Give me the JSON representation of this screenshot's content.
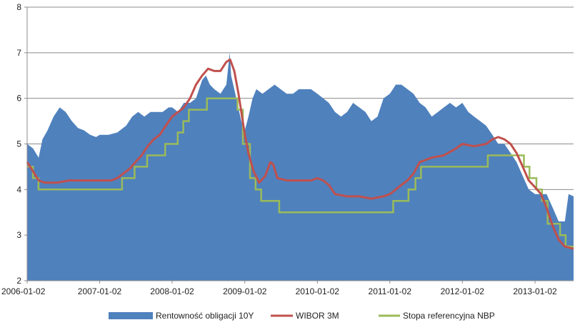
{
  "chart_data": {
    "type": "area",
    "title": "",
    "xlabel": "",
    "ylabel": "",
    "ylim": [
      2,
      8
    ],
    "yticks": [
      "2",
      "3",
      "4",
      "5",
      "6",
      "7",
      "8"
    ],
    "xlim": [
      "2006-01-02",
      "2013-07-15"
    ],
    "xticks": [
      "2006-01-02",
      "2007-01-02",
      "2008-01-02",
      "2009-01-02",
      "2010-01-02",
      "2011-01-02",
      "2012-01-02",
      "2013-01-02"
    ],
    "grid": "horizontal",
    "legend_position": "bottom",
    "colors": {
      "bond": "#4f81bd",
      "wibor": "#c0504d",
      "ref_rate": "#9bbb59",
      "grid": "#8c8c8c",
      "axis": "#8c8c8c"
    },
    "series": [
      {
        "name": "Rentowność obligacji 10Y",
        "kind": "area",
        "points": [
          [
            "2006-01-02",
            5.0
          ],
          [
            "2006-02-01",
            4.9
          ],
          [
            "2006-03-01",
            4.7
          ],
          [
            "2006-03-20",
            5.1
          ],
          [
            "2006-04-15",
            5.3
          ],
          [
            "2006-05-15",
            5.6
          ],
          [
            "2006-06-15",
            5.8
          ],
          [
            "2006-07-15",
            5.7
          ],
          [
            "2006-08-15",
            5.5
          ],
          [
            "2006-09-15",
            5.35
          ],
          [
            "2006-10-15",
            5.3
          ],
          [
            "2006-11-15",
            5.2
          ],
          [
            "2006-12-15",
            5.15
          ],
          [
            "2007-01-02",
            5.2
          ],
          [
            "2007-02-15",
            5.2
          ],
          [
            "2007-04-01",
            5.25
          ],
          [
            "2007-05-15",
            5.4
          ],
          [
            "2007-06-15",
            5.6
          ],
          [
            "2007-07-15",
            5.7
          ],
          [
            "2007-08-15",
            5.6
          ],
          [
            "2007-09-15",
            5.7
          ],
          [
            "2007-10-15",
            5.7
          ],
          [
            "2007-11-15",
            5.7
          ],
          [
            "2007-12-15",
            5.8
          ],
          [
            "2008-01-02",
            5.8
          ],
          [
            "2008-02-01",
            5.7
          ],
          [
            "2008-03-01",
            5.9
          ],
          [
            "2008-04-01",
            5.9
          ],
          [
            "2008-05-01",
            6.0
          ],
          [
            "2008-06-01",
            6.4
          ],
          [
            "2008-06-20",
            6.5
          ],
          [
            "2008-07-10",
            6.3
          ],
          [
            "2008-08-01",
            6.2
          ],
          [
            "2008-09-01",
            6.1
          ],
          [
            "2008-10-01",
            6.3
          ],
          [
            "2008-10-18",
            7.0
          ],
          [
            "2008-10-25",
            6.5
          ],
          [
            "2008-11-15",
            6.1
          ],
          [
            "2008-12-15",
            5.5
          ],
          [
            "2009-01-02",
            5.3
          ],
          [
            "2009-01-20",
            5.6
          ],
          [
            "2009-02-10",
            6.0
          ],
          [
            "2009-03-01",
            6.2
          ],
          [
            "2009-04-01",
            6.1
          ],
          [
            "2009-05-01",
            6.2
          ],
          [
            "2009-06-01",
            6.3
          ],
          [
            "2009-07-01",
            6.2
          ],
          [
            "2009-08-01",
            6.1
          ],
          [
            "2009-09-01",
            6.1
          ],
          [
            "2009-10-01",
            6.2
          ],
          [
            "2009-11-01",
            6.2
          ],
          [
            "2009-12-01",
            6.2
          ],
          [
            "2010-01-02",
            6.1
          ],
          [
            "2010-02-01",
            6.0
          ],
          [
            "2010-03-01",
            5.9
          ],
          [
            "2010-04-01",
            5.7
          ],
          [
            "2010-05-01",
            5.6
          ],
          [
            "2010-06-01",
            5.7
          ],
          [
            "2010-07-01",
            5.9
          ],
          [
            "2010-08-01",
            5.8
          ],
          [
            "2010-09-01",
            5.7
          ],
          [
            "2010-10-01",
            5.5
          ],
          [
            "2010-11-01",
            5.6
          ],
          [
            "2010-12-01",
            6.0
          ],
          [
            "2011-01-02",
            6.1
          ],
          [
            "2011-02-01",
            6.3
          ],
          [
            "2011-03-01",
            6.3
          ],
          [
            "2011-04-01",
            6.2
          ],
          [
            "2011-05-01",
            6.1
          ],
          [
            "2011-06-01",
            5.9
          ],
          [
            "2011-07-01",
            5.8
          ],
          [
            "2011-08-01",
            5.6
          ],
          [
            "2011-09-01",
            5.7
          ],
          [
            "2011-10-01",
            5.8
          ],
          [
            "2011-11-01",
            5.9
          ],
          [
            "2011-12-01",
            5.8
          ],
          [
            "2012-01-02",
            5.9
          ],
          [
            "2012-02-01",
            5.7
          ],
          [
            "2012-03-01",
            5.6
          ],
          [
            "2012-04-01",
            5.5
          ],
          [
            "2012-05-01",
            5.4
          ],
          [
            "2012-06-01",
            5.2
          ],
          [
            "2012-07-01",
            5.0
          ],
          [
            "2012-08-01",
            5.0
          ],
          [
            "2012-09-01",
            4.8
          ],
          [
            "2012-10-01",
            4.6
          ],
          [
            "2012-11-01",
            4.3
          ],
          [
            "2012-12-01",
            4.0
          ],
          [
            "2013-01-02",
            3.9
          ],
          [
            "2013-02-01",
            3.9
          ],
          [
            "2013-03-01",
            3.9
          ],
          [
            "2013-04-01",
            3.6
          ],
          [
            "2013-05-01",
            3.3
          ],
          [
            "2013-06-01",
            3.3
          ],
          [
            "2013-06-20",
            3.9
          ],
          [
            "2013-07-15",
            3.85
          ]
        ]
      },
      {
        "name": "WIBOR 3M",
        "kind": "line",
        "points": [
          [
            "2006-01-02",
            4.6
          ],
          [
            "2006-02-01",
            4.4
          ],
          [
            "2006-03-01",
            4.2
          ],
          [
            "2006-04-01",
            4.15
          ],
          [
            "2006-06-01",
            4.15
          ],
          [
            "2006-08-01",
            4.2
          ],
          [
            "2006-10-01",
            4.2
          ],
          [
            "2006-12-01",
            4.2
          ],
          [
            "2007-01-02",
            4.2
          ],
          [
            "2007-03-01",
            4.2
          ],
          [
            "2007-04-01",
            4.25
          ],
          [
            "2007-05-01",
            4.35
          ],
          [
            "2007-06-01",
            4.45
          ],
          [
            "2007-07-01",
            4.6
          ],
          [
            "2007-08-01",
            4.75
          ],
          [
            "2007-09-01",
            4.95
          ],
          [
            "2007-10-01",
            5.1
          ],
          [
            "2007-11-01",
            5.2
          ],
          [
            "2007-12-01",
            5.4
          ],
          [
            "2008-01-02",
            5.6
          ],
          [
            "2008-02-01",
            5.7
          ],
          [
            "2008-03-01",
            5.8
          ],
          [
            "2008-04-01",
            6.0
          ],
          [
            "2008-05-01",
            6.3
          ],
          [
            "2008-06-01",
            6.5
          ],
          [
            "2008-07-01",
            6.65
          ],
          [
            "2008-08-01",
            6.6
          ],
          [
            "2008-09-01",
            6.6
          ],
          [
            "2008-10-01",
            6.8
          ],
          [
            "2008-10-20",
            6.85
          ],
          [
            "2008-11-10",
            6.6
          ],
          [
            "2008-12-01",
            6.1
          ],
          [
            "2009-01-02",
            5.2
          ],
          [
            "2009-01-20",
            4.8
          ],
          [
            "2009-02-15",
            4.4
          ],
          [
            "2009-03-15",
            4.15
          ],
          [
            "2009-04-15",
            4.3
          ],
          [
            "2009-05-10",
            4.6
          ],
          [
            "2009-05-25",
            4.55
          ],
          [
            "2009-06-15",
            4.25
          ],
          [
            "2009-08-01",
            4.2
          ],
          [
            "2009-10-01",
            4.2
          ],
          [
            "2009-12-01",
            4.2
          ],
          [
            "2010-01-02",
            4.25
          ],
          [
            "2010-02-01",
            4.2
          ],
          [
            "2010-03-01",
            4.1
          ],
          [
            "2010-04-01",
            3.9
          ],
          [
            "2010-06-01",
            3.85
          ],
          [
            "2010-08-01",
            3.85
          ],
          [
            "2010-10-01",
            3.8
          ],
          [
            "2010-12-01",
            3.85
          ],
          [
            "2011-01-02",
            3.9
          ],
          [
            "2011-02-01",
            4.0
          ],
          [
            "2011-03-01",
            4.1
          ],
          [
            "2011-04-01",
            4.2
          ],
          [
            "2011-05-01",
            4.35
          ],
          [
            "2011-06-01",
            4.6
          ],
          [
            "2011-08-01",
            4.7
          ],
          [
            "2011-10-01",
            4.75
          ],
          [
            "2011-12-01",
            4.9
          ],
          [
            "2012-01-02",
            5.0
          ],
          [
            "2012-03-01",
            4.95
          ],
          [
            "2012-05-01",
            5.0
          ],
          [
            "2012-06-01",
            5.1
          ],
          [
            "2012-07-01",
            5.15
          ],
          [
            "2012-08-01",
            5.1
          ],
          [
            "2012-09-01",
            5.0
          ],
          [
            "2012-10-01",
            4.8
          ],
          [
            "2012-11-01",
            4.5
          ],
          [
            "2012-12-01",
            4.2
          ],
          [
            "2013-01-02",
            4.05
          ],
          [
            "2013-02-01",
            3.9
          ],
          [
            "2013-03-01",
            3.6
          ],
          [
            "2013-04-01",
            3.2
          ],
          [
            "2013-05-01",
            2.9
          ],
          [
            "2013-06-01",
            2.75
          ],
          [
            "2013-07-15",
            2.7
          ]
        ]
      },
      {
        "name": "Stopa referencyjna NBP",
        "kind": "step",
        "points": [
          [
            "2006-01-02",
            4.5
          ],
          [
            "2006-01-31",
            4.25
          ],
          [
            "2006-02-28",
            4.0
          ],
          [
            "2007-04-25",
            4.25
          ],
          [
            "2007-06-27",
            4.5
          ],
          [
            "2007-08-29",
            4.75
          ],
          [
            "2007-11-28",
            5.0
          ],
          [
            "2008-01-30",
            5.25
          ],
          [
            "2008-02-27",
            5.5
          ],
          [
            "2008-03-26",
            5.75
          ],
          [
            "2008-06-25",
            6.0
          ],
          [
            "2008-11-26",
            5.75
          ],
          [
            "2008-12-23",
            5.0
          ],
          [
            "2009-01-28",
            4.25
          ],
          [
            "2009-02-25",
            4.0
          ],
          [
            "2009-03-25",
            3.75
          ],
          [
            "2009-06-24",
            3.5
          ],
          [
            "2011-01-19",
            3.75
          ],
          [
            "2011-04-06",
            4.0
          ],
          [
            "2011-05-11",
            4.25
          ],
          [
            "2011-06-08",
            4.5
          ],
          [
            "2012-05-09",
            4.75
          ],
          [
            "2012-11-07",
            4.5
          ],
          [
            "2012-12-05",
            4.25
          ],
          [
            "2013-01-09",
            4.0
          ],
          [
            "2013-02-06",
            3.75
          ],
          [
            "2013-03-06",
            3.25
          ],
          [
            "2013-05-08",
            3.0
          ],
          [
            "2013-06-05",
            2.75
          ],
          [
            "2013-07-15",
            2.75
          ]
        ]
      }
    ]
  }
}
